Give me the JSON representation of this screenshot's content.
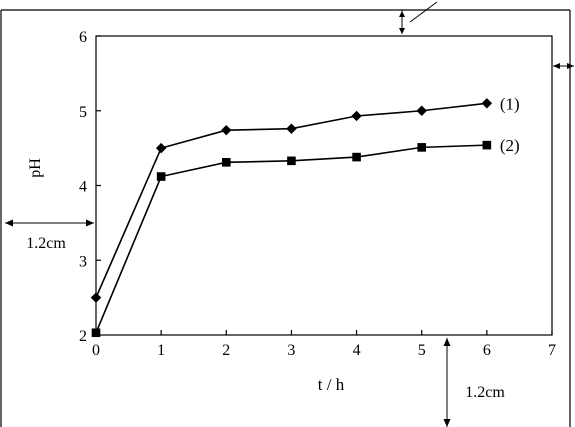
{
  "chart_data": {
    "type": "line",
    "xlabel": "t / h",
    "ylabel": "pH",
    "xlim": [
      0,
      7
    ],
    "ylim": [
      2,
      6
    ],
    "x_ticks": [
      "0",
      "1",
      "2",
      "3",
      "4",
      "5",
      "6",
      "7"
    ],
    "y_ticks": [
      "2",
      "3",
      "4",
      "5",
      "6"
    ],
    "grid": false,
    "x": [
      0,
      1,
      2,
      3,
      4,
      5,
      6
    ],
    "series": [
      {
        "name": "(1)",
        "marker": "diamond",
        "color": "#000000",
        "values": [
          2.5,
          4.5,
          4.74,
          4.76,
          4.93,
          5.0,
          5.1
        ]
      },
      {
        "name": "(2)",
        "marker": "square",
        "color": "#000000",
        "values": [
          2.03,
          4.12,
          4.31,
          4.33,
          4.38,
          4.51,
          4.54
        ]
      }
    ]
  },
  "annotations": {
    "left_margin": "1.2cm",
    "bottom_margin": "1.2cm"
  }
}
